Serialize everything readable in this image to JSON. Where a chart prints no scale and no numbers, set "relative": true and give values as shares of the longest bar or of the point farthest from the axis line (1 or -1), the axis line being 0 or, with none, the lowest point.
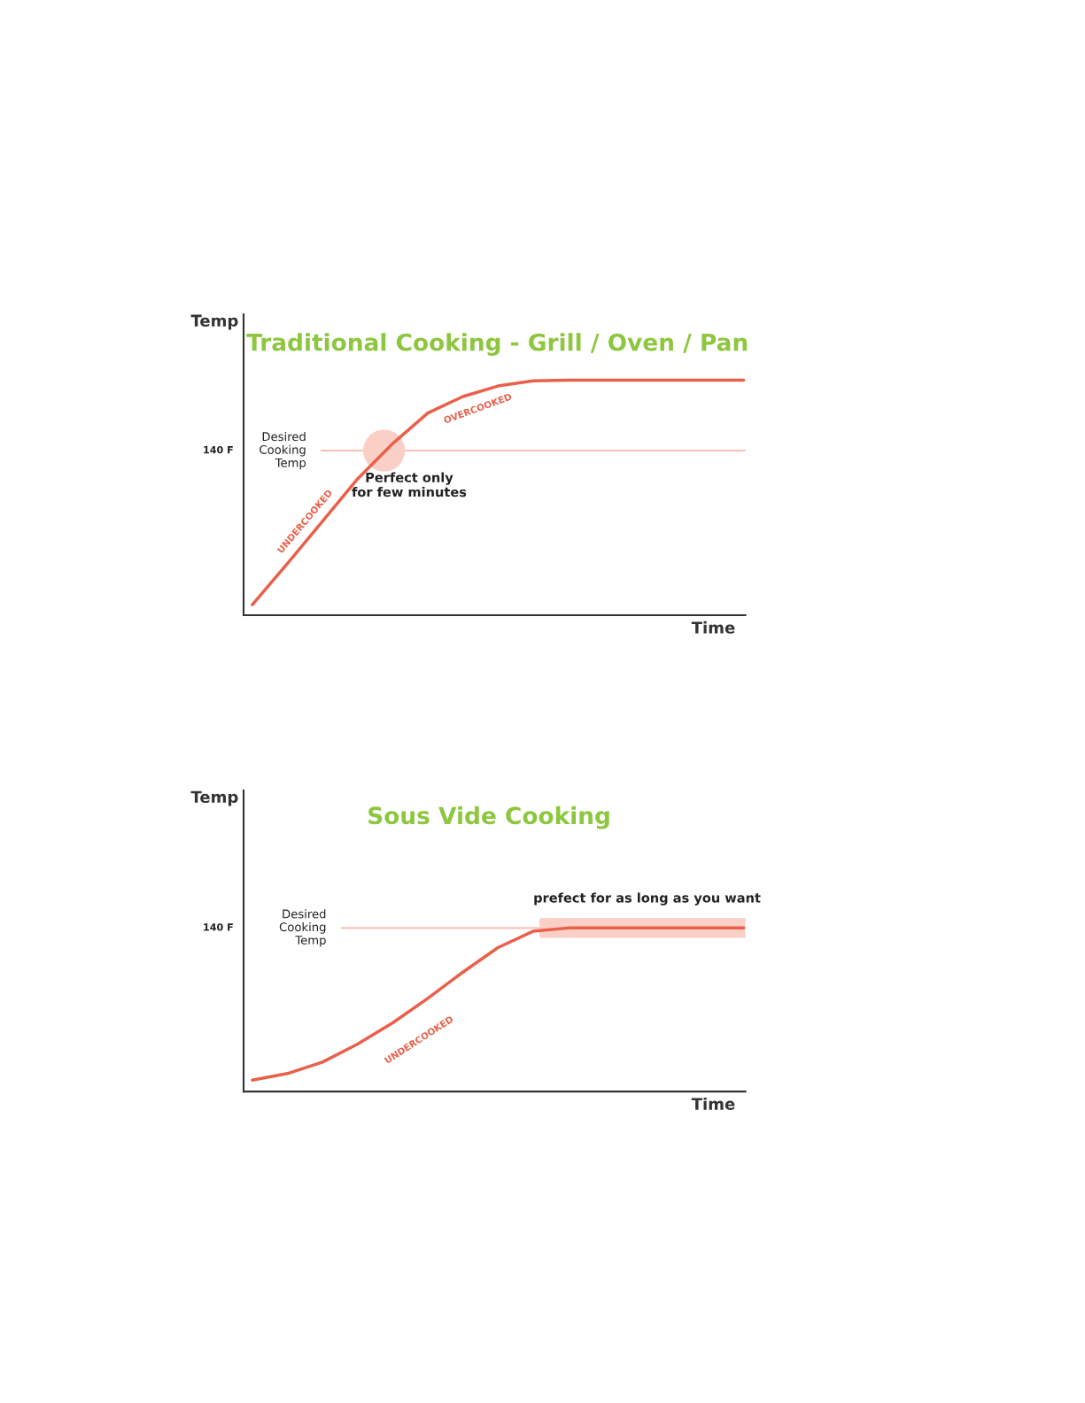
{
  "chart_data": [
    {
      "type": "line",
      "title": "Traditional Cooking - Grill / Oven / Pan",
      "ylabel": "Temp",
      "xlabel": "Time",
      "relative": true,
      "categories": [
        null,
        null,
        null,
        null,
        null,
        null,
        null,
        null,
        null,
        null,
        null,
        null,
        null,
        null,
        null
      ],
      "series": [
        {
          "color": "#e8604a",
          "values": [
            0.045,
            0.22,
            0.4,
            0.58,
            0.73,
            0.86,
            0.93,
            0.975,
            0.997,
            1,
            1,
            1,
            1,
            1,
            1
          ]
        }
      ],
      "ref_lines": [
        {
          "axis": "y",
          "value": 0.7,
          "label": "Desired\nCooking\nTemp",
          "color": "#f4b6aa"
        }
      ],
      "annotations": [
        "140 F",
        "Perfect only\nfor few minutes",
        "UNDERCOOKED",
        "OVERCOOKED"
      ]
    },
    {
      "type": "line",
      "title": "Sous Vide Cooking",
      "ylabel": "Temp",
      "xlabel": "Time",
      "relative": true,
      "categories": [
        null,
        null,
        null,
        null,
        null,
        null,
        null,
        null,
        null,
        null,
        null,
        null,
        null,
        null,
        null
      ],
      "series": [
        {
          "color": "#e8604a",
          "values": [
            0.07,
            0.11,
            0.18,
            0.29,
            0.42,
            0.57,
            0.73,
            0.88,
            0.98,
            1,
            1,
            1,
            1,
            1,
            1
          ]
        }
      ],
      "ref_lines": [
        {
          "axis": "y",
          "value": 1,
          "label": "Desired\nCooking\nTemp",
          "color": "#f4b6aa"
        }
      ],
      "annotations": [
        "140 F",
        "prefect for as long as you want",
        "UNDERCOOKED"
      ]
    }
  ]
}
